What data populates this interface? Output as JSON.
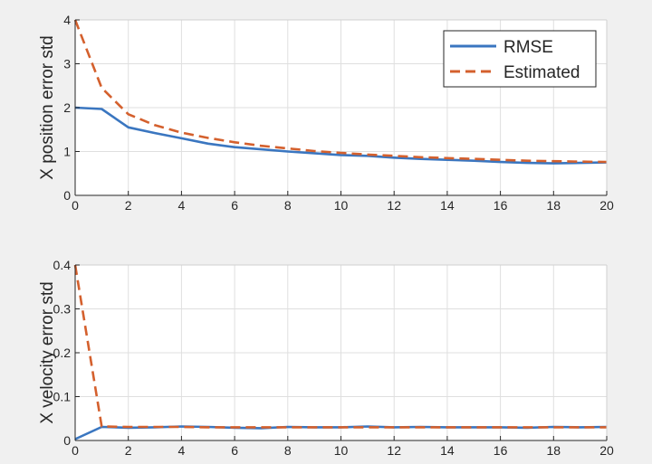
{
  "chart_data": [
    {
      "type": "line",
      "title": "",
      "xlabel": "",
      "ylabel": "X position error std",
      "xlim": [
        0,
        20
      ],
      "ylim": [
        0,
        4
      ],
      "xticks": [
        0,
        2,
        4,
        6,
        8,
        10,
        12,
        14,
        16,
        18,
        20
      ],
      "yticks": [
        0,
        1,
        2,
        3,
        4
      ],
      "grid": true,
      "legend": "top-right",
      "x": [
        0,
        1,
        2,
        3,
        4,
        5,
        6,
        7,
        8,
        9,
        10,
        11,
        12,
        13,
        14,
        15,
        16,
        17,
        18,
        19,
        20
      ],
      "series": [
        {
          "name": "RMSE",
          "style": "solid",
          "color": "#3a76c0",
          "values": [
            2.0,
            1.97,
            1.55,
            1.42,
            1.3,
            1.18,
            1.1,
            1.05,
            1.0,
            0.96,
            0.92,
            0.9,
            0.86,
            0.83,
            0.81,
            0.79,
            0.76,
            0.74,
            0.73,
            0.74,
            0.75
          ]
        },
        {
          "name": "Estimated",
          "style": "dashed",
          "color": "#d4602d",
          "values": [
            4.0,
            2.45,
            1.85,
            1.6,
            1.43,
            1.31,
            1.21,
            1.13,
            1.07,
            1.01,
            0.97,
            0.93,
            0.9,
            0.87,
            0.85,
            0.83,
            0.81,
            0.79,
            0.78,
            0.77,
            0.76
          ]
        }
      ]
    },
    {
      "type": "line",
      "title": "",
      "xlabel": "",
      "ylabel": "X velocity error std",
      "xlim": [
        0,
        20
      ],
      "ylim": [
        0,
        0.4
      ],
      "xticks": [
        0,
        2,
        4,
        6,
        8,
        10,
        12,
        14,
        16,
        18,
        20
      ],
      "yticks": [
        0,
        0.1,
        0.2,
        0.3,
        0.4
      ],
      "grid": true,
      "x": [
        0,
        1,
        2,
        3,
        4,
        5,
        6,
        7,
        8,
        9,
        10,
        11,
        12,
        13,
        14,
        15,
        16,
        17,
        18,
        19,
        20
      ],
      "series": [
        {
          "name": "RMSE",
          "style": "solid",
          "color": "#3a76c0",
          "values": [
            0.003,
            0.031,
            0.029,
            0.03,
            0.032,
            0.031,
            0.029,
            0.028,
            0.031,
            0.03,
            0.03,
            0.032,
            0.03,
            0.031,
            0.03,
            0.03,
            0.03,
            0.029,
            0.031,
            0.03,
            0.031
          ]
        },
        {
          "name": "Estimated",
          "style": "dashed",
          "color": "#d4602d",
          "values": [
            0.4,
            0.032,
            0.031,
            0.031,
            0.031,
            0.03,
            0.03,
            0.03,
            0.03,
            0.03,
            0.03,
            0.03,
            0.03,
            0.03,
            0.03,
            0.03,
            0.03,
            0.03,
            0.03,
            0.03,
            0.03
          ]
        }
      ]
    }
  ]
}
